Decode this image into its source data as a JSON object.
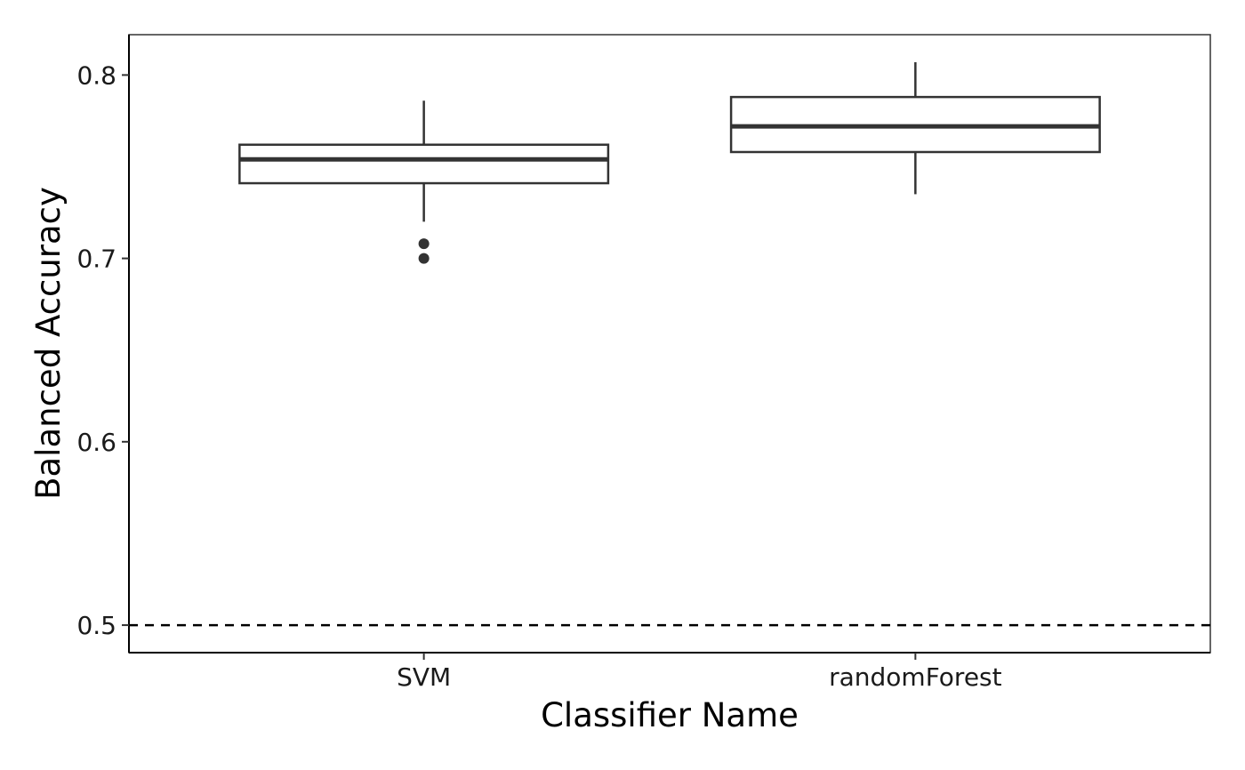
{
  "chart_data": {
    "type": "boxplot",
    "title": "",
    "xlabel": "Classifier Name",
    "ylabel": "Balanced Accuracy",
    "ylim": [
      0.485,
      0.822
    ],
    "yticks": [
      0.5,
      0.6,
      0.7,
      0.8
    ],
    "ytick_labels": [
      "0.5",
      "0.6",
      "0.7",
      "0.8"
    ],
    "categories": [
      "SVM",
      "randomForest"
    ],
    "boxes": [
      {
        "category": "SVM",
        "whisker_low": 0.72,
        "q1": 0.741,
        "median": 0.754,
        "q3": 0.762,
        "whisker_high": 0.786,
        "outliers": [
          0.708,
          0.7
        ]
      },
      {
        "category": "randomForest",
        "whisker_low": 0.735,
        "q1": 0.758,
        "median": 0.772,
        "q3": 0.788,
        "whisker_high": 0.807,
        "outliers": []
      }
    ],
    "reference_line": {
      "y": 0.5,
      "style": "dashed"
    },
    "grid": false,
    "legend": "none",
    "colors": {
      "box_stroke": "#333333",
      "box_fill": "#ffffff",
      "axis": "#000000",
      "reference": "#000000"
    }
  }
}
